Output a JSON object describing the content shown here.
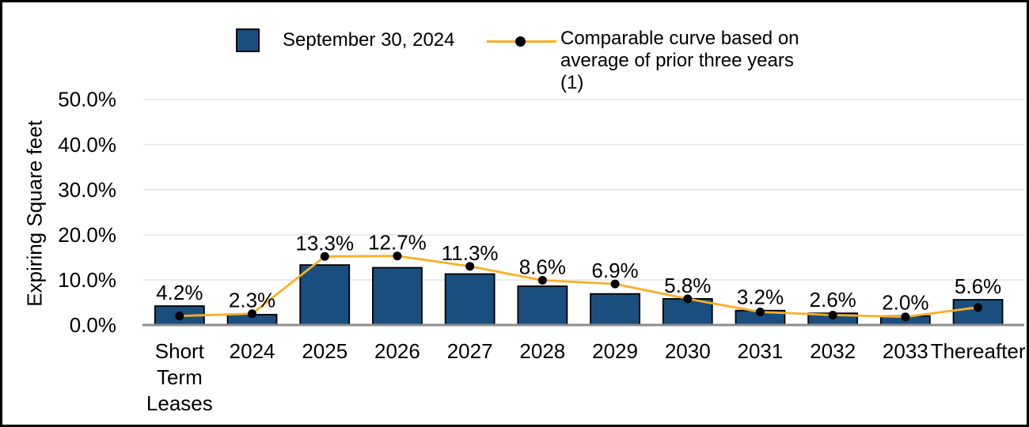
{
  "chart_data": {
    "type": "combo",
    "title": "",
    "ylabel": "Expiring Square feet",
    "xlabel": "",
    "ylim": [
      0,
      50
    ],
    "y_tick_step": 10,
    "y_ticks": [
      "0.0%",
      "10.0%",
      "20.0%",
      "30.0%",
      "40.0%",
      "50.0%"
    ],
    "grid": true,
    "legend_position": "top",
    "categories": [
      "Short Term Leases",
      "2024",
      "2025",
      "2026",
      "2027",
      "2028",
      "2029",
      "2030",
      "2031",
      "2032",
      "2033",
      "Thereafter"
    ],
    "series": [
      {
        "name": "September 30, 2024",
        "type": "bar",
        "color": "#1A4E7E",
        "values": [
          4.2,
          2.3,
          13.3,
          12.7,
          11.3,
          8.6,
          6.9,
          5.8,
          3.2,
          2.6,
          2.0,
          5.6
        ],
        "labels": [
          "4.2%",
          "2.3%",
          "13.3%",
          "12.7%",
          "11.3%",
          "8.6%",
          "6.9%",
          "5.8%",
          "3.2%",
          "2.6%",
          "2.0%",
          "5.6%"
        ]
      },
      {
        "name": "Comparable curve based on average of prior three years (1)",
        "type": "line",
        "color": "#FBAE24",
        "marker_color": "#000000",
        "values": [
          2.0,
          2.5,
          15.2,
          15.3,
          13.0,
          9.9,
          9.1,
          5.8,
          2.9,
          2.2,
          1.8,
          3.9
        ]
      }
    ]
  }
}
